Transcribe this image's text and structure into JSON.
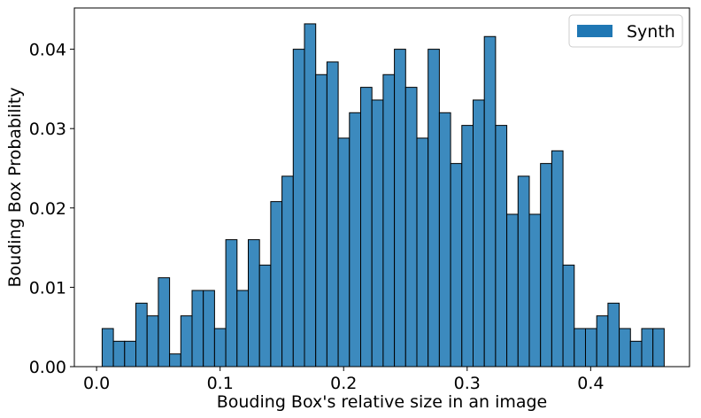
{
  "chart_data": {
    "type": "bar",
    "title": "",
    "xlabel": "Bouding Box's relative size in an image",
    "ylabel": "Bouding Box Probability",
    "xlim": [
      -0.018,
      0.48
    ],
    "ylim": [
      0,
      0.0452
    ],
    "xticks": [
      0.0,
      0.1,
      0.2,
      0.3,
      0.4
    ],
    "xtick_labels": [
      "0.0",
      "0.1",
      "0.2",
      "0.3",
      "0.4"
    ],
    "yticks": [
      0.0,
      0.01,
      0.02,
      0.03,
      0.04
    ],
    "ytick_labels": [
      "0.00",
      "0.01",
      "0.02",
      "0.03",
      "0.04"
    ],
    "grid": false,
    "legend_position": "top-right",
    "bin_start": 0.0045,
    "bin_width": 0.0091,
    "series": [
      {
        "name": "Synth",
        "color": "#3c8abe",
        "legend_color": "#1f77b4",
        "values": [
          0.0048,
          0.0032,
          0.0032,
          0.008,
          0.0064,
          0.0112,
          0.0016,
          0.0064,
          0.0096,
          0.0096,
          0.0048,
          0.016,
          0.0096,
          0.016,
          0.0128,
          0.0208,
          0.024,
          0.04,
          0.0432,
          0.0368,
          0.0384,
          0.0288,
          0.032,
          0.0352,
          0.0336,
          0.0368,
          0.04,
          0.0352,
          0.0288,
          0.04,
          0.032,
          0.0256,
          0.0304,
          0.0336,
          0.0416,
          0.0304,
          0.0192,
          0.024,
          0.0192,
          0.0256,
          0.0272,
          0.0128,
          0.0048,
          0.0048,
          0.0064,
          0.008,
          0.0048,
          0.0032,
          0.0048,
          0.0048
        ]
      }
    ]
  }
}
